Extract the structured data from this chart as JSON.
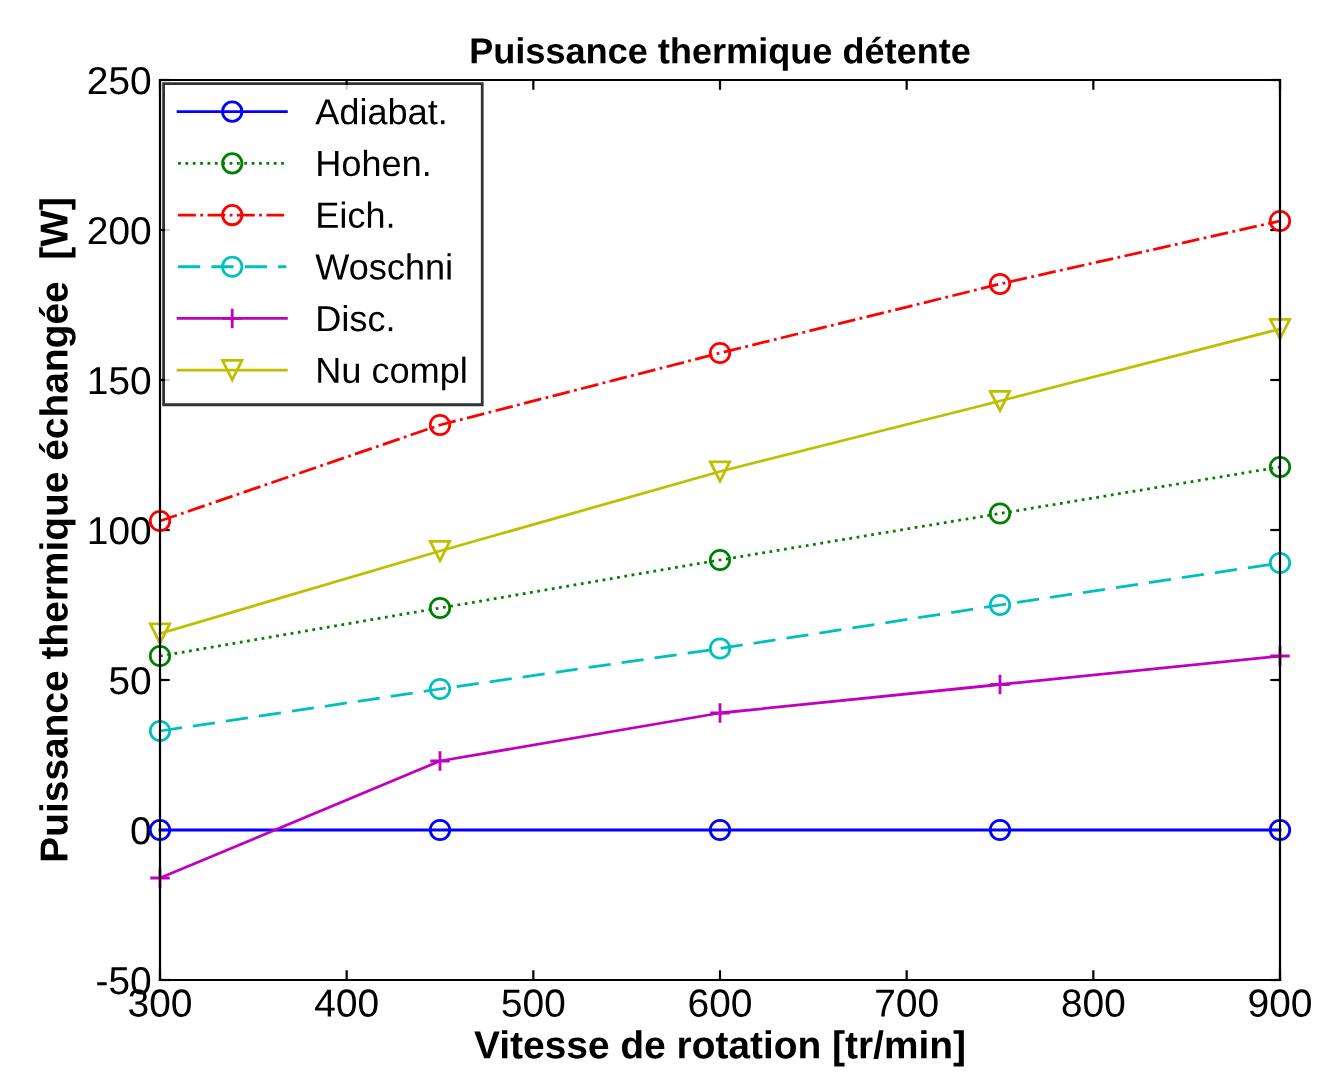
{
  "chart_data": {
    "type": "line",
    "title": "Puissance thermique détente",
    "xlabel": "Vitesse de rotation [tr/min]",
    "ylabel": "Puissance thermique échangée  [W]",
    "x": [
      300,
      450,
      600,
      750,
      900
    ],
    "series": [
      {
        "name": "Adiabat.",
        "color": "#0000ff",
        "values": [
          0,
          0,
          0,
          0,
          0
        ],
        "marker": "circle",
        "line_style": "solid"
      },
      {
        "name": "Hohen.",
        "color": "#008000",
        "values": [
          58,
          74,
          90,
          105.5,
          121
        ],
        "marker": "circle",
        "line_style": "dotted"
      },
      {
        "name": "Eich.",
        "color": "#ff0000",
        "values": [
          103,
          135,
          159,
          182,
          203
        ],
        "marker": "circle",
        "line_style": "dashdot"
      },
      {
        "name": "Woschni",
        "color": "#00bfbf",
        "values": [
          33,
          47,
          60.5,
          75,
          89
        ],
        "marker": "circle",
        "line_style": "dashed"
      },
      {
        "name": "Disc.",
        "color": "#bf00bf",
        "values": [
          -16,
          23,
          39,
          48.5,
          58
        ],
        "marker": "plus",
        "line_style": "solid"
      },
      {
        "name": "Nu compl",
        "color": "#bfbf00",
        "values": [
          65.5,
          93,
          119.5,
          143,
          167
        ],
        "marker": "triangle_down",
        "line_style": "solid"
      }
    ],
    "xlim": [
      300,
      900
    ],
    "xticks": [
      300,
      400,
      500,
      600,
      700,
      800,
      900
    ],
    "ylim": [
      -50,
      250
    ],
    "yticks": [
      -50,
      0,
      50,
      100,
      150,
      200,
      250
    ],
    "grid": false,
    "legend": "top left"
  }
}
